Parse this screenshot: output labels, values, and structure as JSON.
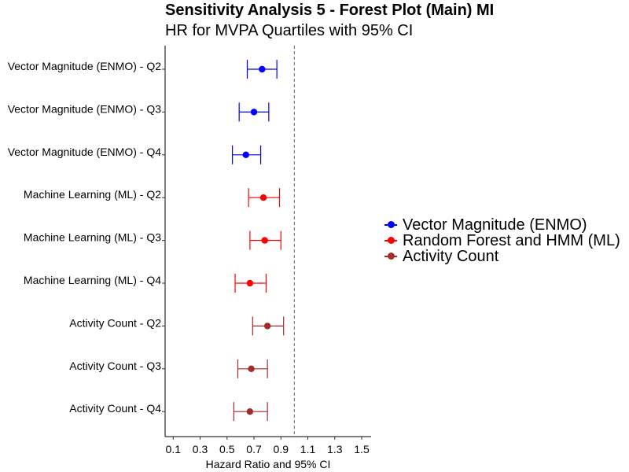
{
  "chart_data": {
    "type": "forest",
    "title": "Sensitivity Analysis 5 - Forest Plot (Main) MI",
    "subtitle": "HR for MVPA Quartiles with 95% CI",
    "xlabel": "Hazard Ratio and 95% CI",
    "xlim": [
      0.04,
      1.57
    ],
    "xticks": [
      0.1,
      0.3,
      0.5,
      0.7,
      0.9,
      1.1,
      1.3,
      1.5
    ],
    "reference_line": 1.0,
    "grid": false,
    "legend_position": "right",
    "series": [
      {
        "name": "Vector Magnitude (ENMO)",
        "color": "#0000ff"
      },
      {
        "name": "Random Forest and HMM (ML)",
        "color": "#ff0000"
      },
      {
        "name": "Activity Count",
        "color": "#a52a2a"
      }
    ],
    "rows": [
      {
        "label": "Vector Magnitude (ENMO) - Q2",
        "series": 0,
        "hr": 0.76,
        "lower": 0.65,
        "upper": 0.87
      },
      {
        "label": "Vector Magnitude (ENMO) - Q3",
        "series": 0,
        "hr": 0.7,
        "lower": 0.59,
        "upper": 0.81
      },
      {
        "label": "Vector Magnitude (ENMO) - Q4",
        "series": 0,
        "hr": 0.64,
        "lower": 0.54,
        "upper": 0.75
      },
      {
        "label": "Machine Learning (ML) - Q2",
        "series": 1,
        "hr": 0.77,
        "lower": 0.66,
        "upper": 0.89
      },
      {
        "label": "Machine Learning (ML) - Q3",
        "series": 1,
        "hr": 0.78,
        "lower": 0.67,
        "upper": 0.9
      },
      {
        "label": "Machine Learning (ML) - Q4",
        "series": 1,
        "hr": 0.67,
        "lower": 0.56,
        "upper": 0.79
      },
      {
        "label": "Activity Count - Q2",
        "series": 2,
        "hr": 0.8,
        "lower": 0.69,
        "upper": 0.92
      },
      {
        "label": "Activity Count - Q3",
        "series": 2,
        "hr": 0.68,
        "lower": 0.58,
        "upper": 0.8
      },
      {
        "label": "Activity Count - Q4",
        "series": 2,
        "hr": 0.67,
        "lower": 0.55,
        "upper": 0.8
      }
    ]
  }
}
